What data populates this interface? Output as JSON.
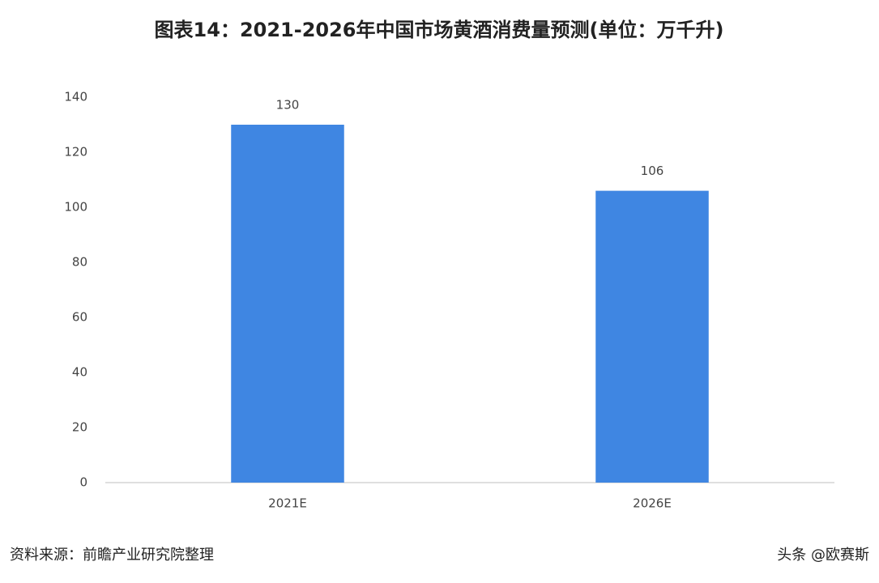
{
  "chart_data": {
    "type": "bar",
    "title": "图表14：2021-2026年中国市场黄酒消费量预测(单位：万千升)",
    "categories": [
      "2021E",
      "2026E"
    ],
    "values": [
      130,
      106
    ],
    "color": "#3f86e2",
    "ylim": [
      0,
      140
    ],
    "yticks": [
      0,
      20,
      40,
      60,
      80,
      100,
      120,
      140
    ],
    "grid": false,
    "source": "资料来源：前瞻产业研究院整理",
    "watermark": "头条 @欧赛斯"
  }
}
